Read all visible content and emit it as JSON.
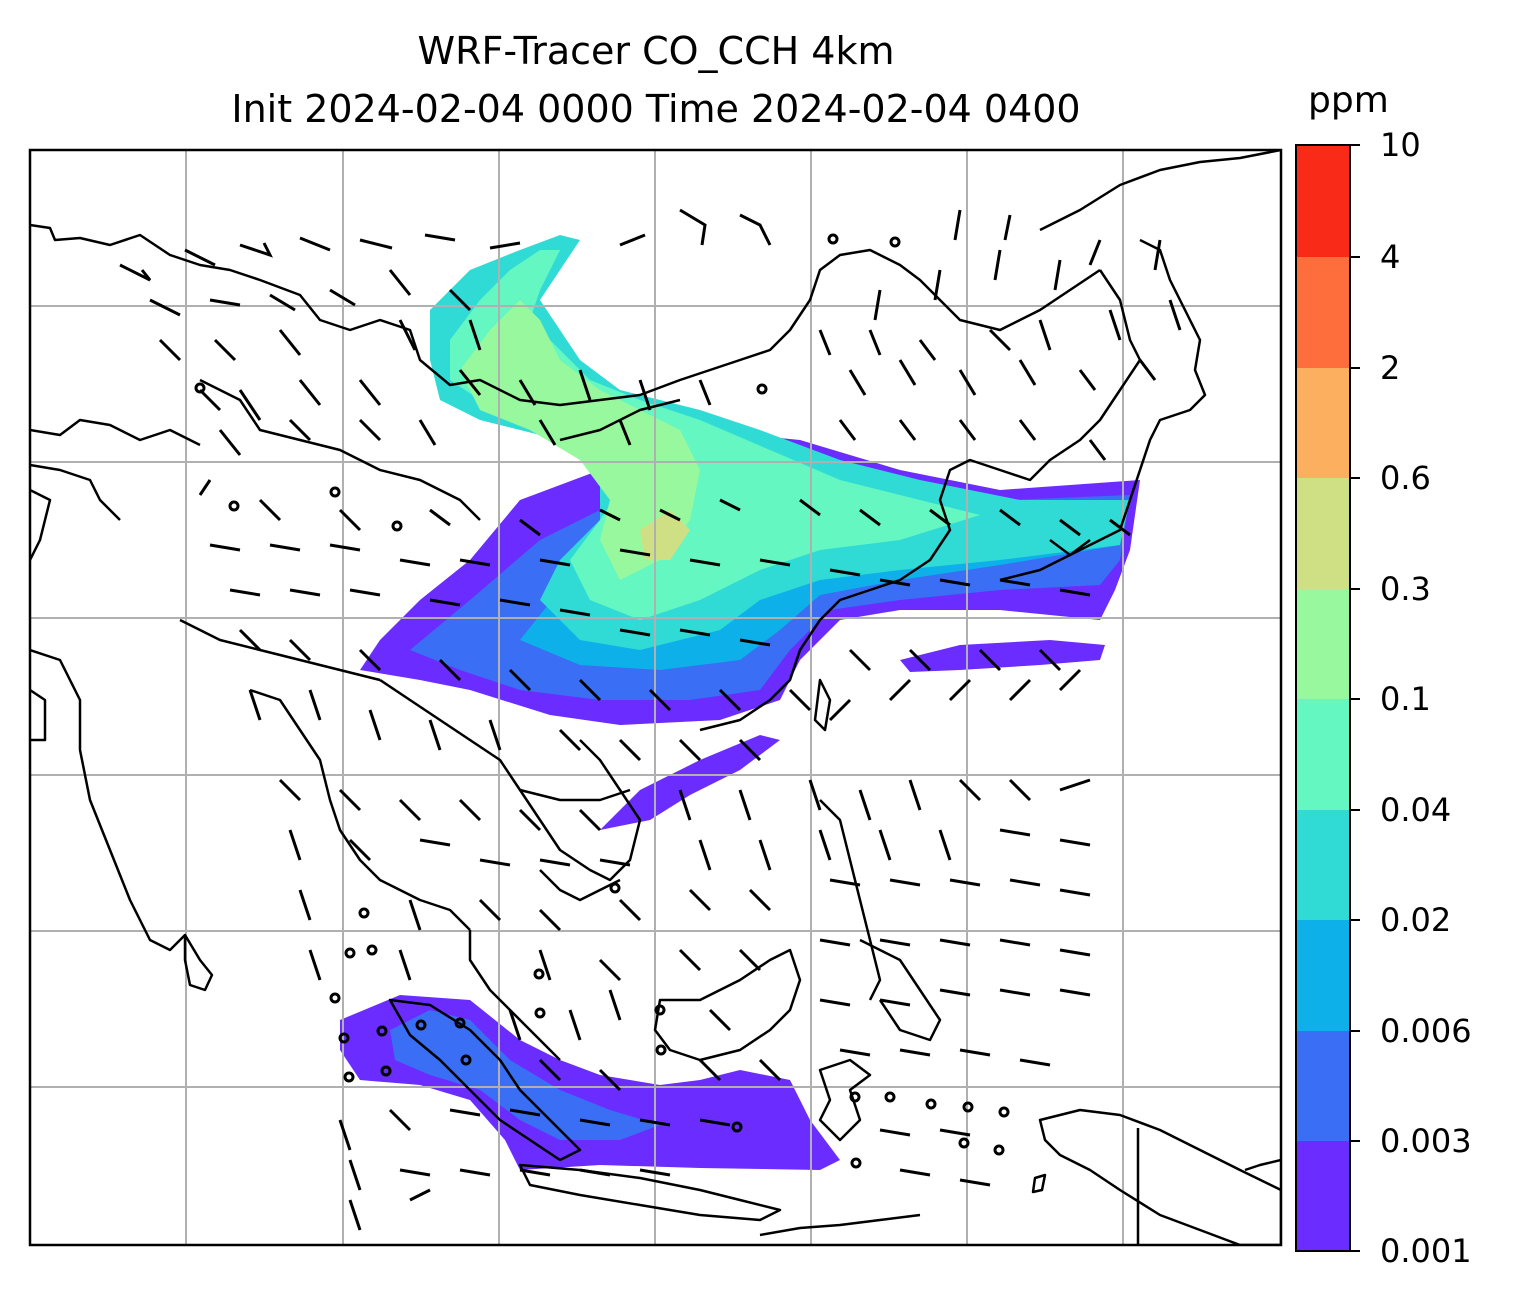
{
  "title_line1": "WRF-Tracer CO_CCH 4km",
  "title_line2": "Init 2024-02-04 0000 Time 2024-02-04 0400",
  "colorbar": {
    "unit": "ppm",
    "ticks": [
      "0.001",
      "0.003",
      "0.006",
      "0.02",
      "0.04",
      "0.1",
      "0.3",
      "0.6",
      "2",
      "4",
      "10"
    ],
    "colors": [
      "#6a2cff",
      "#3a6ef5",
      "#0eb0ea",
      "#30dbd6",
      "#64f7c2",
      "#98f89e",
      "#cfdf84",
      "#fdaf60",
      "#fd6e3c",
      "#fa2a18"
    ]
  },
  "map": {
    "background": "#ffffff",
    "gridlines": true,
    "coastlines": true,
    "wind_barbs": true,
    "calm_markers": true
  }
}
